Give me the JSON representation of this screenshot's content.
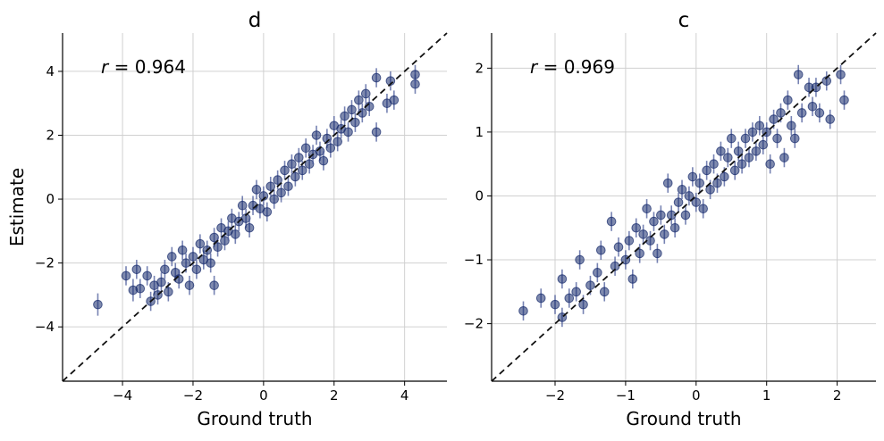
{
  "figure": {
    "ylabel_shared": "Estimate",
    "point_color": "#152a6b",
    "errorbar_color": "#4a5a9a",
    "diagonal_color": "#111111"
  },
  "chart_data": [
    {
      "type": "scatter",
      "title": "d",
      "xlabel": "Ground truth",
      "ylabel": "Estimate",
      "xlim": [
        -5.7,
        5.2
      ],
      "ylim": [
        -5.7,
        5.2
      ],
      "xticks": [
        -4,
        -2,
        0,
        2,
        4
      ],
      "yticks": [
        -4,
        -2,
        0,
        2,
        4
      ],
      "xtick_labels": [
        "−4",
        "−2",
        "0",
        "2",
        "4"
      ],
      "ytick_labels": [
        "−4",
        "−2",
        "0",
        "2",
        "4"
      ],
      "grid": true,
      "reference_line": "y = x (dashed)",
      "annotation": {
        "symbol": "r",
        "text": " = 0.964",
        "value": 0.964
      },
      "points": [
        [
          -4.7,
          -3.3,
          0.35
        ],
        [
          -3.9,
          -2.4,
          0.3
        ],
        [
          -3.7,
          -2.85,
          0.35
        ],
        [
          -3.6,
          -2.2,
          0.3
        ],
        [
          -3.5,
          -2.8,
          0.3
        ],
        [
          -3.3,
          -2.4,
          0.3
        ],
        [
          -3.2,
          -3.2,
          0.3
        ],
        [
          -3.1,
          -2.7,
          0.3
        ],
        [
          -3.0,
          -3.0,
          0.3
        ],
        [
          -2.9,
          -2.6,
          0.3
        ],
        [
          -2.8,
          -2.2,
          0.3
        ],
        [
          -2.7,
          -2.9,
          0.3
        ],
        [
          -2.6,
          -1.8,
          0.3
        ],
        [
          -2.5,
          -2.3,
          0.3
        ],
        [
          -2.4,
          -2.5,
          0.3
        ],
        [
          -2.3,
          -1.6,
          0.3
        ],
        [
          -2.2,
          -2.0,
          0.3
        ],
        [
          -2.1,
          -2.7,
          0.3
        ],
        [
          -2.0,
          -1.8,
          0.3
        ],
        [
          -1.9,
          -2.2,
          0.3
        ],
        [
          -1.8,
          -1.4,
          0.3
        ],
        [
          -1.7,
          -1.9,
          0.3
        ],
        [
          -1.6,
          -1.6,
          0.3
        ],
        [
          -1.5,
          -2.0,
          0.3
        ],
        [
          -1.4,
          -2.7,
          0.3
        ],
        [
          -1.4,
          -1.2,
          0.3
        ],
        [
          -1.3,
          -1.5,
          0.3
        ],
        [
          -1.2,
          -0.9,
          0.3
        ],
        [
          -1.1,
          -1.3,
          0.3
        ],
        [
          -1.0,
          -1.0,
          0.3
        ],
        [
          -0.9,
          -0.6,
          0.3
        ],
        [
          -0.8,
          -1.1,
          0.3
        ],
        [
          -0.7,
          -0.7,
          0.3
        ],
        [
          -0.6,
          -0.2,
          0.3
        ],
        [
          -0.5,
          -0.6,
          0.3
        ],
        [
          -0.4,
          -0.9,
          0.3
        ],
        [
          -0.3,
          -0.2,
          0.3
        ],
        [
          -0.2,
          0.3,
          0.3
        ],
        [
          -0.1,
          -0.3,
          0.3
        ],
        [
          0.0,
          0.1,
          0.3
        ],
        [
          0.1,
          -0.4,
          0.3
        ],
        [
          0.2,
          0.4,
          0.3
        ],
        [
          0.3,
          0.0,
          0.3
        ],
        [
          0.4,
          0.6,
          0.3
        ],
        [
          0.5,
          0.2,
          0.3
        ],
        [
          0.6,
          0.9,
          0.3
        ],
        [
          0.7,
          0.4,
          0.3
        ],
        [
          0.8,
          1.1,
          0.3
        ],
        [
          0.9,
          0.7,
          0.3
        ],
        [
          1.0,
          1.3,
          0.3
        ],
        [
          1.1,
          0.9,
          0.3
        ],
        [
          1.2,
          1.6,
          0.3
        ],
        [
          1.3,
          1.1,
          0.3
        ],
        [
          1.4,
          1.4,
          0.3
        ],
        [
          1.5,
          2.0,
          0.3
        ],
        [
          1.6,
          1.5,
          0.3
        ],
        [
          1.7,
          1.2,
          0.3
        ],
        [
          1.8,
          1.9,
          0.3
        ],
        [
          1.9,
          1.6,
          0.3
        ],
        [
          2.0,
          2.3,
          0.3
        ],
        [
          2.1,
          1.8,
          0.3
        ],
        [
          2.2,
          2.2,
          0.3
        ],
        [
          2.3,
          2.6,
          0.3
        ],
        [
          2.4,
          2.1,
          0.3
        ],
        [
          2.5,
          2.8,
          0.3
        ],
        [
          2.6,
          2.4,
          0.3
        ],
        [
          2.7,
          3.1,
          0.3
        ],
        [
          2.8,
          2.7,
          0.3
        ],
        [
          2.9,
          3.3,
          0.3
        ],
        [
          3.0,
          2.9,
          0.3
        ],
        [
          3.2,
          2.1,
          0.3
        ],
        [
          3.2,
          3.8,
          0.3
        ],
        [
          3.5,
          3.0,
          0.3
        ],
        [
          3.6,
          3.7,
          0.3
        ],
        [
          3.7,
          3.1,
          0.3
        ],
        [
          4.3,
          3.6,
          0.3
        ],
        [
          4.3,
          3.9,
          0.3
        ]
      ]
    },
    {
      "type": "scatter",
      "title": "c",
      "xlabel": "Ground truth",
      "ylabel": "",
      "xlim": [
        -2.9,
        2.55
      ],
      "ylim": [
        -2.9,
        2.55
      ],
      "xticks": [
        -2,
        -1,
        0,
        1,
        2
      ],
      "yticks": [
        -2,
        -1,
        0,
        1,
        2
      ],
      "xtick_labels": [
        "−2",
        "−1",
        "0",
        "1",
        "2"
      ],
      "ytick_labels": [
        "−2",
        "−1",
        "0",
        "1",
        "2"
      ],
      "grid": true,
      "reference_line": "y = x (dashed)",
      "annotation": {
        "symbol": "r",
        "text": " = 0.969",
        "value": 0.969
      },
      "points": [
        [
          -2.45,
          -1.8,
          0.15
        ],
        [
          -2.2,
          -1.6,
          0.15
        ],
        [
          -2.0,
          -1.7,
          0.15
        ],
        [
          -1.9,
          -1.9,
          0.15
        ],
        [
          -1.9,
          -1.3,
          0.15
        ],
        [
          -1.8,
          -1.6,
          0.15
        ],
        [
          -1.7,
          -1.5,
          0.15
        ],
        [
          -1.65,
          -1.0,
          0.15
        ],
        [
          -1.6,
          -1.7,
          0.15
        ],
        [
          -1.5,
          -1.4,
          0.15
        ],
        [
          -1.4,
          -1.2,
          0.15
        ],
        [
          -1.35,
          -0.85,
          0.15
        ],
        [
          -1.3,
          -1.5,
          0.15
        ],
        [
          -1.2,
          -0.4,
          0.15
        ],
        [
          -1.15,
          -1.1,
          0.15
        ],
        [
          -1.1,
          -0.8,
          0.15
        ],
        [
          -1.0,
          -1.0,
          0.15
        ],
        [
          -0.95,
          -0.7,
          0.15
        ],
        [
          -0.9,
          -1.3,
          0.15
        ],
        [
          -0.85,
          -0.5,
          0.15
        ],
        [
          -0.8,
          -0.9,
          0.15
        ],
        [
          -0.75,
          -0.6,
          0.15
        ],
        [
          -0.7,
          -0.2,
          0.15
        ],
        [
          -0.65,
          -0.7,
          0.15
        ],
        [
          -0.6,
          -0.4,
          0.15
        ],
        [
          -0.55,
          -0.9,
          0.15
        ],
        [
          -0.5,
          -0.3,
          0.15
        ],
        [
          -0.45,
          -0.6,
          0.15
        ],
        [
          -0.4,
          0.2,
          0.15
        ],
        [
          -0.35,
          -0.3,
          0.15
        ],
        [
          -0.3,
          -0.5,
          0.15
        ],
        [
          -0.25,
          -0.1,
          0.15
        ],
        [
          -0.2,
          0.1,
          0.15
        ],
        [
          -0.15,
          -0.3,
          0.15
        ],
        [
          -0.1,
          0.0,
          0.15
        ],
        [
          -0.05,
          0.3,
          0.15
        ],
        [
          0.0,
          -0.1,
          0.15
        ],
        [
          0.05,
          0.2,
          0.15
        ],
        [
          0.1,
          -0.2,
          0.15
        ],
        [
          0.15,
          0.4,
          0.15
        ],
        [
          0.2,
          0.1,
          0.15
        ],
        [
          0.25,
          0.5,
          0.15
        ],
        [
          0.3,
          0.2,
          0.15
        ],
        [
          0.35,
          0.7,
          0.15
        ],
        [
          0.4,
          0.3,
          0.15
        ],
        [
          0.45,
          0.6,
          0.15
        ],
        [
          0.5,
          0.9,
          0.15
        ],
        [
          0.55,
          0.4,
          0.15
        ],
        [
          0.6,
          0.7,
          0.15
        ],
        [
          0.65,
          0.5,
          0.15
        ],
        [
          0.7,
          0.9,
          0.15
        ],
        [
          0.75,
          0.6,
          0.15
        ],
        [
          0.8,
          1.0,
          0.15
        ],
        [
          0.85,
          0.7,
          0.15
        ],
        [
          0.9,
          1.1,
          0.15
        ],
        [
          0.95,
          0.8,
          0.15
        ],
        [
          1.0,
          1.0,
          0.15
        ],
        [
          1.05,
          0.5,
          0.15
        ],
        [
          1.1,
          1.2,
          0.15
        ],
        [
          1.15,
          0.9,
          0.15
        ],
        [
          1.2,
          1.3,
          0.15
        ],
        [
          1.25,
          0.6,
          0.15
        ],
        [
          1.3,
          1.5,
          0.15
        ],
        [
          1.35,
          1.1,
          0.15
        ],
        [
          1.4,
          0.9,
          0.15
        ],
        [
          1.45,
          1.9,
          0.15
        ],
        [
          1.5,
          1.3,
          0.15
        ],
        [
          1.6,
          1.7,
          0.15
        ],
        [
          1.65,
          1.4,
          0.15
        ],
        [
          1.7,
          1.7,
          0.15
        ],
        [
          1.75,
          1.3,
          0.15
        ],
        [
          1.85,
          1.8,
          0.15
        ],
        [
          1.9,
          1.2,
          0.15
        ],
        [
          2.05,
          1.9,
          0.15
        ],
        [
          2.1,
          1.5,
          0.15
        ]
      ]
    }
  ]
}
